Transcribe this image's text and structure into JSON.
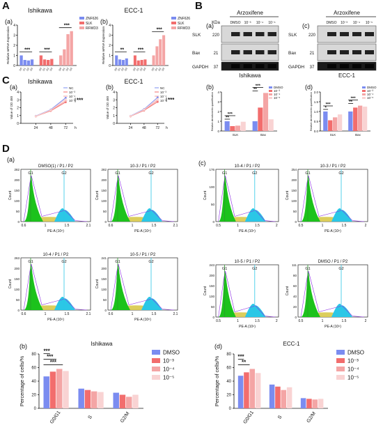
{
  "panels": {
    "A": "A",
    "B": "B",
    "C": "C",
    "D": "D"
  },
  "colors": {
    "dmso": "#7B8CF0",
    "d3": "#F26D6D",
    "d4": "#F4A5A5",
    "d5": "#F9D3D3",
    "znf": "#7B8CF0",
    "slk": "#F26D6D",
    "rfwd3": "#F4A5A5",
    "g1fill": "#1CC21C",
    "sfill": "#D8C94A",
    "g2fill": "#2BC7E6"
  },
  "chart_data": [
    {
      "id": "A-a",
      "type": "bar",
      "sub": "(a)",
      "title": "Ishikawa",
      "ylabel": "Relative mRNA Expression",
      "ylim": [
        0,
        4
      ],
      "yticks": [
        "0",
        "1",
        "2",
        "3",
        "4"
      ],
      "legend": [
        "ZNF626",
        "SLK",
        "RFWD3"
      ],
      "groups": [
        {
          "values": [
            1.0,
            0.55,
            0.5,
            0.6
          ],
          "sig": "***"
        },
        {
          "values": [
            1.0,
            0.6,
            0.55,
            0.65
          ],
          "sig": "***"
        },
        {
          "values": [
            1.0,
            1.6,
            3.1,
            3.4
          ],
          "sig": "***"
        }
      ],
      "sig_inner": "**"
    },
    {
      "id": "A-b",
      "type": "bar",
      "sub": "(b)",
      "title": "ECC-1",
      "ylabel": "Relative mRNA Expression",
      "ylim": [
        0,
        4
      ],
      "yticks": [
        "0",
        "1",
        "2",
        "3",
        "4"
      ],
      "legend": [
        "ZNF626",
        "SLK",
        "RFWD3"
      ],
      "groups": [
        {
          "values": [
            1.0,
            0.6,
            0.55,
            0.7
          ],
          "sig": "**"
        },
        {
          "values": [
            1.0,
            0.5,
            0.55,
            0.6
          ],
          "sig": "***"
        },
        {
          "values": [
            1.0,
            1.9,
            2.6,
            3.0
          ],
          "sig": "***"
        }
      ],
      "sig_inner": "**"
    },
    {
      "id": "C-a",
      "type": "line",
      "sub": "(a)",
      "title": "Ishikawa",
      "ylabel": "Value of OD 450",
      "x": [
        24,
        48,
        72
      ],
      "xticks": [
        "24",
        "48",
        "72"
      ],
      "xunit": "h",
      "ylim": [
        0,
        4
      ],
      "yticks": [
        "0",
        "1",
        "2",
        "3",
        "4"
      ],
      "legend": [
        "NC",
        "10⁻³",
        "10⁻⁴",
        "10⁻⁵"
      ],
      "series": [
        [
          0.95,
          1.75,
          3.25
        ],
        [
          0.9,
          1.6,
          2.7
        ],
        [
          0.9,
          1.65,
          2.85
        ],
        [
          0.92,
          1.7,
          3.05
        ]
      ],
      "sig": "***"
    },
    {
      "id": "C-b",
      "type": "line",
      "sub": "(b)",
      "title": "ECC-1",
      "ylabel": "Value of OD 450",
      "x": [
        24,
        48,
        72
      ],
      "xticks": [
        "24",
        "48",
        "72"
      ],
      "xunit": "h",
      "ylim": [
        0,
        4
      ],
      "yticks": [
        "0",
        "1",
        "2",
        "3",
        "4"
      ],
      "legend": [
        "NC",
        "10⁻³",
        "10⁻⁴",
        "10⁻⁵"
      ],
      "series": [
        [
          0.95,
          1.8,
          3.3
        ],
        [
          0.9,
          1.65,
          2.75
        ],
        [
          0.92,
          1.7,
          2.95
        ],
        [
          0.93,
          1.75,
          3.1
        ]
      ],
      "sig": "***"
    },
    {
      "id": "B-b",
      "type": "bar",
      "sub": "(b)",
      "title": "",
      "ylabel": "Relative densitometric quantification",
      "ylim": [
        0,
        4
      ],
      "yticks": [
        "0",
        "1",
        "2",
        "3",
        "4"
      ],
      "legend": [
        "DMSO",
        "10⁻³",
        "10⁻⁴",
        "10⁻⁵"
      ],
      "categories": [
        "SLK",
        "Bax"
      ],
      "values": [
        [
          1.0,
          0.5,
          0.55,
          0.95
        ],
        [
          1.0,
          2.4,
          3.9,
          1.2
        ]
      ],
      "sig": [
        [
          "**",
          "***"
        ],
        [
          "**",
          "***"
        ]
      ]
    },
    {
      "id": "B-d",
      "type": "bar",
      "sub": "(d)",
      "title": "",
      "ylabel": "Relative densitometric quantification",
      "ylim": [
        0,
        2
      ],
      "yticks": [
        "0.0",
        "0.5",
        "1.0",
        "1.5",
        "2.0"
      ],
      "legend": [
        "DMSO",
        "10⁻³",
        "10⁻⁴",
        "10⁻⁵"
      ],
      "categories": [
        "SLK",
        "Bax"
      ],
      "values": [
        [
          1.0,
          0.55,
          0.7,
          0.85
        ],
        [
          1.0,
          1.2,
          1.3,
          1.25
        ]
      ],
      "sig": [
        [
          "*",
          "***"
        ],
        [
          "**",
          "***"
        ]
      ]
    },
    {
      "id": "D-b",
      "type": "bar",
      "sub": "(b)",
      "title": "Ishikawa",
      "ylabel": "Percentage of cells/%",
      "ylim": [
        0,
        80
      ],
      "yticks": [
        "0",
        "20",
        "40",
        "60",
        "80"
      ],
      "legend": [
        "DMSO",
        "10⁻³",
        "10⁻⁴",
        "10⁻⁵"
      ],
      "categories": [
        "G0/G1",
        "S",
        "G2/M"
      ],
      "values": [
        [
          47,
          54,
          58,
          55
        ],
        [
          29,
          27,
          25,
          24
        ],
        [
          23,
          20,
          17,
          20
        ]
      ],
      "sig": [
        "***",
        "***",
        "***"
      ]
    },
    {
      "id": "D-d",
      "type": "bar",
      "sub": "(d)",
      "title": "ECC-1",
      "ylabel": "Percentage of cells/%",
      "ylim": [
        0,
        80
      ],
      "yticks": [
        "0",
        "20",
        "40",
        "60",
        "80"
      ],
      "legend": [
        "DMSO",
        "10⁻³",
        "10⁻⁴",
        "10⁻⁵"
      ],
      "categories": [
        "G0/G1",
        "S",
        "G2/M"
      ],
      "values": [
        [
          48,
          53,
          58,
          52
        ],
        [
          35,
          32,
          27,
          31
        ],
        [
          15,
          14,
          13,
          14
        ]
      ],
      "sig": [
        "***",
        "**"
      ]
    }
  ],
  "blots": {
    "a": {
      "sub": "(a)",
      "title": "Arzoxifene",
      "cell": "Ishikawa",
      "kda_header": "KDa",
      "lanes": [
        "DMSO",
        "10⁻³",
        "10⁻⁴",
        "10⁻⁵"
      ],
      "rows": [
        {
          "label": "SLK",
          "kda": "220"
        },
        {
          "label": "Bax",
          "kda": "21"
        },
        {
          "label": "GAPDH",
          "kda": "37"
        }
      ]
    },
    "c": {
      "sub": "(c)",
      "title": "Arzoxifene",
      "cell": "ECC-1",
      "lanes": [
        "DMSO",
        "10⁻³",
        "10⁻⁴",
        "10⁻⁵"
      ],
      "rows": [
        {
          "label": "SLK",
          "kda": "220"
        },
        {
          "label": "Bax",
          "kda": "21"
        },
        {
          "label": "GAPDH",
          "kda": "37"
        }
      ]
    }
  },
  "flow": {
    "sub_a": "(a)",
    "sub_c": "(c)",
    "xlabel": "PE-A  (10⁶)",
    "ylabel": "Count",
    "gate_g1": "G1",
    "gate_g2": "G2",
    "plots": [
      {
        "title": "DMSO(1) / P1 / P2",
        "ymax": "282",
        "yticks": [
          "0",
          "50",
          "100",
          "150",
          "200",
          "282"
        ],
        "xticks": [
          "0.6",
          "1",
          "1.5",
          "2.1"
        ]
      },
      {
        "title": "10-3 / P1 / P2",
        "ymax": "282",
        "yticks": [
          "0",
          "50",
          "100",
          "150",
          "200",
          "282"
        ],
        "xticks": [
          "0.6",
          "1",
          "1.5",
          "2.1"
        ]
      },
      {
        "title": "10-4 / P1 / P2",
        "ymax": "263",
        "yticks": [
          "0",
          "50",
          "100",
          "150",
          "200",
          "263"
        ],
        "xticks": [
          "0.6",
          "1",
          "1.5",
          "2.1"
        ]
      },
      {
        "title": "10-5 / P1 / P2",
        "ymax": "241",
        "yticks": [
          "0",
          "50",
          "100",
          "150",
          "200",
          "241"
        ],
        "xticks": [
          "0.6",
          "1",
          "1.5",
          "2.1"
        ]
      },
      {
        "title": "10-4 / P1 / P2",
        "ymax": "176",
        "yticks": [
          "0",
          "50",
          "100",
          "176"
        ],
        "xticks": [
          "0.5",
          "1",
          "1.5",
          "2"
        ]
      },
      {
        "title": "10-3 / P1 / P2",
        "ymax": "254",
        "yticks": [
          "0",
          "50",
          "100",
          "150",
          "200",
          "254"
        ],
        "xticks": [
          "0.5",
          "1",
          "1.5",
          "2"
        ]
      },
      {
        "title": "10-5 / P1 / P2",
        "ymax": "243",
        "yticks": [
          "0",
          "50",
          "100",
          "150",
          "200",
          "243"
        ],
        "xticks": [
          "0.5",
          "1",
          "1.5",
          "2"
        ]
      },
      {
        "title": "DMSO / P1 / P2",
        "ymax": "111",
        "yticks": [
          "0",
          "20",
          "40",
          "60",
          "80",
          "111"
        ],
        "xticks": [
          "0.5",
          "1",
          "1.5",
          "2"
        ]
      }
    ]
  }
}
